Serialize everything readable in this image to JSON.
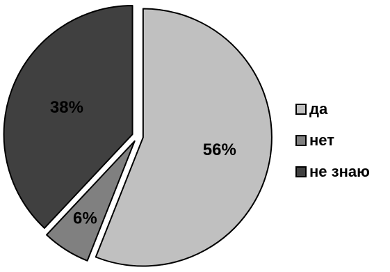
{
  "chart_data": {
    "type": "pie",
    "title": "",
    "categories": [
      "да",
      "нет",
      "не знаю"
    ],
    "values": [
      56,
      6,
      38
    ],
    "labels": [
      "56%",
      "6%",
      "38%"
    ],
    "colors": [
      "#c0c0c0",
      "#808080",
      "#404040"
    ],
    "legend": "right",
    "exploded": true
  }
}
